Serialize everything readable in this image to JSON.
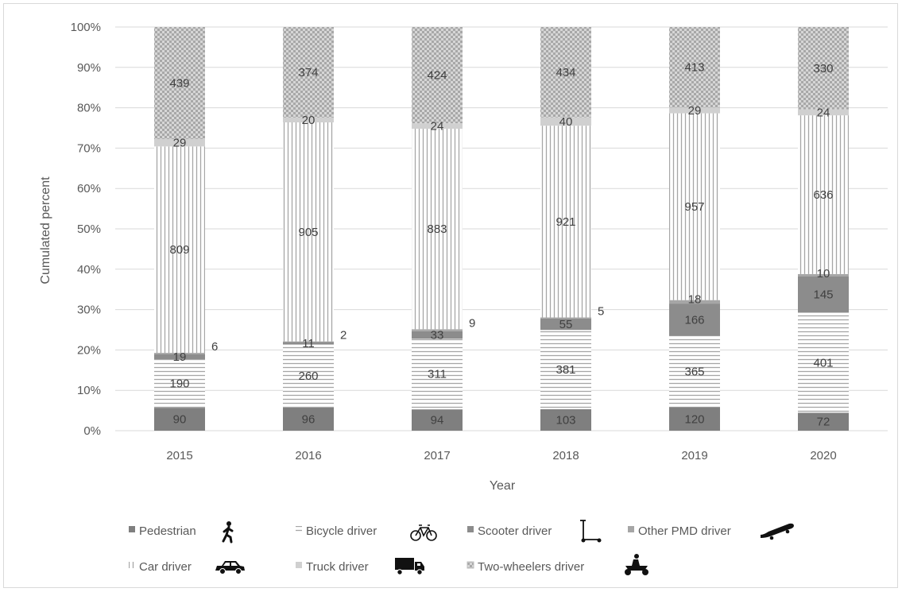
{
  "chart_data": {
    "type": "bar",
    "stacked": "percent",
    "title": "",
    "xlabel": "Year",
    "ylabel": "Cumulated percent",
    "ylim": [
      0,
      100
    ],
    "y_ticks": [
      "0%",
      "10%",
      "20%",
      "30%",
      "40%",
      "50%",
      "60%",
      "70%",
      "80%",
      "90%",
      "100%"
    ],
    "categories": [
      "2015",
      "2016",
      "2017",
      "2018",
      "2019",
      "2020"
    ],
    "series": [
      {
        "name": "Pedestrian",
        "values": [
          90,
          96,
          94,
          103,
          120,
          72
        ],
        "fill": "#7f7f7f",
        "pattern": "solid-dark",
        "icon": "pedestrian-icon"
      },
      {
        "name": "Bicycle driver",
        "values": [
          190,
          260,
          311,
          381,
          365,
          401
        ],
        "fill": "#a6a6a6",
        "pattern": "horizontal-lines",
        "icon": "bicycle-icon"
      },
      {
        "name": "Scooter driver",
        "values": [
          19,
          11,
          33,
          55,
          166,
          145
        ],
        "fill": "#8c8c8c",
        "pattern": "solid-medium",
        "icon": "kick-scooter-icon"
      },
      {
        "name": "Other PMD driver",
        "values": [
          6,
          2,
          9,
          5,
          18,
          10
        ],
        "fill": "#a6a6a6",
        "pattern": "solid-light",
        "icon": "skateboard-icon"
      },
      {
        "name": "Car driver",
        "values": [
          809,
          905,
          883,
          921,
          957,
          636
        ],
        "fill": "#a6a6a6",
        "pattern": "vertical-lines",
        "icon": "car-icon"
      },
      {
        "name": "Truck driver",
        "values": [
          29,
          20,
          24,
          40,
          29,
          24
        ],
        "fill": "#d0d0d0",
        "pattern": "solid-pale",
        "icon": "truck-icon"
      },
      {
        "name": "Two-wheelers driver",
        "values": [
          439,
          374,
          424,
          434,
          413,
          330
        ],
        "fill": "#bfbfbf",
        "pattern": "checker",
        "icon": "motorcycle-icon"
      }
    ],
    "grid": true,
    "legend_position": "bottom"
  }
}
